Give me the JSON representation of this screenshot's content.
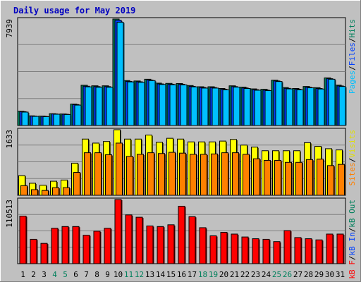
{
  "chart_data": {
    "type": "bar",
    "title": "Daily usage for May 2019",
    "categories": [
      "1",
      "2",
      "3",
      "4",
      "5",
      "6",
      "7",
      "8",
      "9",
      "10",
      "11",
      "12",
      "13",
      "14",
      "15",
      "16",
      "17",
      "18",
      "19",
      "20",
      "21",
      "22",
      "23",
      "24",
      "25",
      "26",
      "27",
      "28",
      "29",
      "30",
      "31"
    ],
    "weekend_days": [
      "4",
      "5",
      "11",
      "12",
      "18",
      "19",
      "25",
      "26"
    ],
    "panels": [
      {
        "id": "hits-files-pages",
        "max_label": "7939",
        "ylim": [
          0,
          7939
        ],
        "legend": [
          {
            "label": "Pages",
            "color": "#00c0ff"
          },
          {
            "label": "/",
            "color": "#000000"
          },
          {
            "label": "Files",
            "color": "#0040ff"
          },
          {
            "label": "/",
            "color": "#000000"
          },
          {
            "label": "Hits",
            "color": "#00805c"
          }
        ],
        "series": [
          {
            "name": "Hits",
            "color": "#00805c",
            "values": [
              1060,
              720,
              700,
              880,
              860,
              1600,
              3000,
              2960,
              2960,
              7939,
              3350,
              3320,
              3450,
              3160,
              3140,
              3130,
              2980,
              2890,
              2890,
              2760,
              2960,
              2860,
              2730,
              2700,
              3380,
              2830,
              2760,
              2910,
              2820,
              3550,
              3010
            ]
          },
          {
            "name": "Files",
            "color": "#0040ff",
            "values": [
              1030,
              700,
              680,
              860,
              840,
              1560,
              2930,
              2900,
              2900,
              7850,
              3290,
              3260,
              3390,
              3100,
              3080,
              3070,
              2920,
              2830,
              2830,
              2700,
              2900,
              2800,
              2670,
              2640,
              3320,
              2770,
              2700,
              2850,
              2760,
              3490,
              2950
            ]
          },
          {
            "name": "Pages",
            "color": "#00c0ff",
            "values": [
              1000,
              680,
              660,
              840,
              820,
              1520,
              2880,
              2850,
              2850,
              7700,
              3250,
              3220,
              3350,
              3060,
              3040,
              3030,
              2880,
              2790,
              2790,
              2660,
              2860,
              2760,
              2630,
              2600,
              3280,
              2730,
              2660,
              2810,
              2720,
              3450,
              2910
            ]
          }
        ]
      },
      {
        "id": "visits-sites",
        "max_label": "1633",
        "ylim": [
          0,
          1633
        ],
        "legend": [
          {
            "label": "Sites",
            "color": "#ff8000"
          },
          {
            "label": "/",
            "color": "#000000"
          },
          {
            "label": "Visits",
            "color": "#e0e000"
          }
        ],
        "series": [
          {
            "name": "Visits",
            "color": "#ffff00",
            "values": [
              490,
              300,
              250,
              350,
              380,
              800,
              1400,
              1300,
              1340,
              1633,
              1400,
              1400,
              1500,
              1320,
              1420,
              1400,
              1330,
              1330,
              1330,
              1350,
              1390,
              1250,
              1200,
              1110,
              1110,
              1110,
              1110,
              1310,
              1220,
              1160,
              1130
            ]
          },
          {
            "name": "Sites",
            "color": "#ff8000",
            "values": [
              240,
              140,
              120,
              190,
              190,
              570,
              1060,
              1060,
              1010,
              1300,
              970,
              1020,
              1060,
              1040,
              1070,
              1050,
              1020,
              1020,
              1030,
              1060,
              1060,
              1020,
              910,
              870,
              870,
              820,
              820,
              890,
              900,
              740,
              770
            ]
          }
        ]
      },
      {
        "id": "kb",
        "max_label": "110513",
        "ylim": [
          0,
          110513
        ],
        "legend": [
          {
            "label": "kB F",
            "color": "#ff0000"
          },
          {
            "label": "/",
            "color": "#000000"
          },
          {
            "label": "kB In",
            "color": "#0040ff"
          },
          {
            "label": "/",
            "color": "#000000"
          },
          {
            "label": "kB Out",
            "color": "#00805c"
          }
        ],
        "series": [
          {
            "name": "kB F",
            "color": "#ff0000",
            "values": [
              82000,
              42000,
              35000,
              61000,
              64000,
              64000,
              49000,
              56000,
              61000,
              110513,
              84000,
              80000,
              65000,
              64000,
              67000,
              99000,
              81000,
              62000,
              48000,
              54000,
              51000,
              46000,
              43000,
              42000,
              38000,
              57000,
              45000,
              43000,
              41000,
              51000,
              51000
            ]
          }
        ]
      }
    ]
  }
}
